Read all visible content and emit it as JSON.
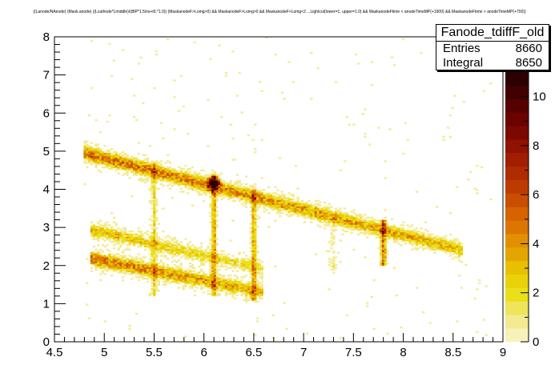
{
  "title": "((Lanode/NAnode) (Mask.anode) ((Lcathode*Lmiddle)/(tBP*1.5/ns+t0.*1.0)) (MaskanodeF>Lomg>0) && MaskanodeF>Lomg>0 && MaskanodeF>Lomg<2 ...Lightcut(lower=1, upper=1.0) && MaskanodeFtime < anodeTimeMP(+1900) && MaskanodeFtime > anodeTimeMP(+700))",
  "stats": {
    "name": "Fanode_tdiffF_old",
    "entries_label": "Entries",
    "entries_value": "8660",
    "integral_label": "Integral",
    "integral_value": "8650"
  },
  "palette": [
    "#f7f2b9",
    "#f3ea91",
    "#efe55a",
    "#ebdf19",
    "#ead20a",
    "#e8c000",
    "#e5a500",
    "#e29000",
    "#dc7600",
    "#d66300",
    "#ca4e00",
    "#be3b00",
    "#b02b00",
    "#a11f00",
    "#901200",
    "#7c0800",
    "#6a0300",
    "#560000",
    "#420000",
    "#2c0000"
  ],
  "chart_data": {
    "type": "heatmap",
    "title": "((Lanode/NAnode) (Mask.anode) ((Lcathode*Lmiddle)/(tBP*1.5/ns+t0.*1.0)) (MaskanodeF>Lomg>0) && MaskanodeF>Lomg>0 && MaskanodeF>Lomg<2 ...Lightcut(lower=1, upper=1.0) && MaskanodeFtime < anodeTimeMP(+1900) && MaskanodeFtime > anodeTimeMP(+700))",
    "xlabel": "",
    "ylabel": "",
    "xlim": [
      4.5,
      9
    ],
    "ylim": [
      0,
      8
    ],
    "zlim": [
      0,
      11
    ],
    "x_ticks": [
      "4.5",
      "5",
      "5.5",
      "6",
      "6.5",
      "7",
      "7.5",
      "8",
      "8.5",
      "9"
    ],
    "y_ticks": [
      "0",
      "1",
      "2",
      "3",
      "4",
      "5",
      "6",
      "7",
      "8"
    ],
    "z_ticks": [
      "0",
      "2",
      "4",
      "6",
      "8",
      "10"
    ],
    "grid": false,
    "legend": "colour scale on right",
    "bins": {
      "x": 200,
      "y": 200
    },
    "density_features": [
      {
        "name": "upper band",
        "from": [
          4.8,
          4.95
        ],
        "to": [
          8.6,
          2.4
        ],
        "peak_counts": 5
      },
      {
        "name": "middle band",
        "from": [
          4.85,
          2.95
        ],
        "to": [
          6.6,
          1.9
        ],
        "peak_counts": 3
      },
      {
        "name": "lower band",
        "from": [
          4.85,
          2.2
        ],
        "to": [
          6.6,
          1.3
        ],
        "peak_counts": 5
      },
      {
        "name": "hot spot",
        "center": [
          6.1,
          4.15
        ],
        "peak_counts": 11
      },
      {
        "name": "vertical stripe",
        "x": 6.1,
        "y_range": [
          1.2,
          4.4
        ],
        "peak_counts": 6
      },
      {
        "name": "vertical stripe",
        "x": 6.5,
        "y_range": [
          1.1,
          4.0
        ],
        "peak_counts": 6
      },
      {
        "name": "vertical stripe",
        "x": 7.8,
        "y_range": [
          2.0,
          3.2
        ],
        "peak_counts": 9
      },
      {
        "name": "vertical stripe",
        "x": 5.5,
        "y_range": [
          1.2,
          4.7
        ],
        "peak_counts": 4
      },
      {
        "name": "vertical stripe",
        "x": 7.3,
        "y_range": [
          1.8,
          3.3
        ],
        "peak_counts": 2
      }
    ]
  }
}
